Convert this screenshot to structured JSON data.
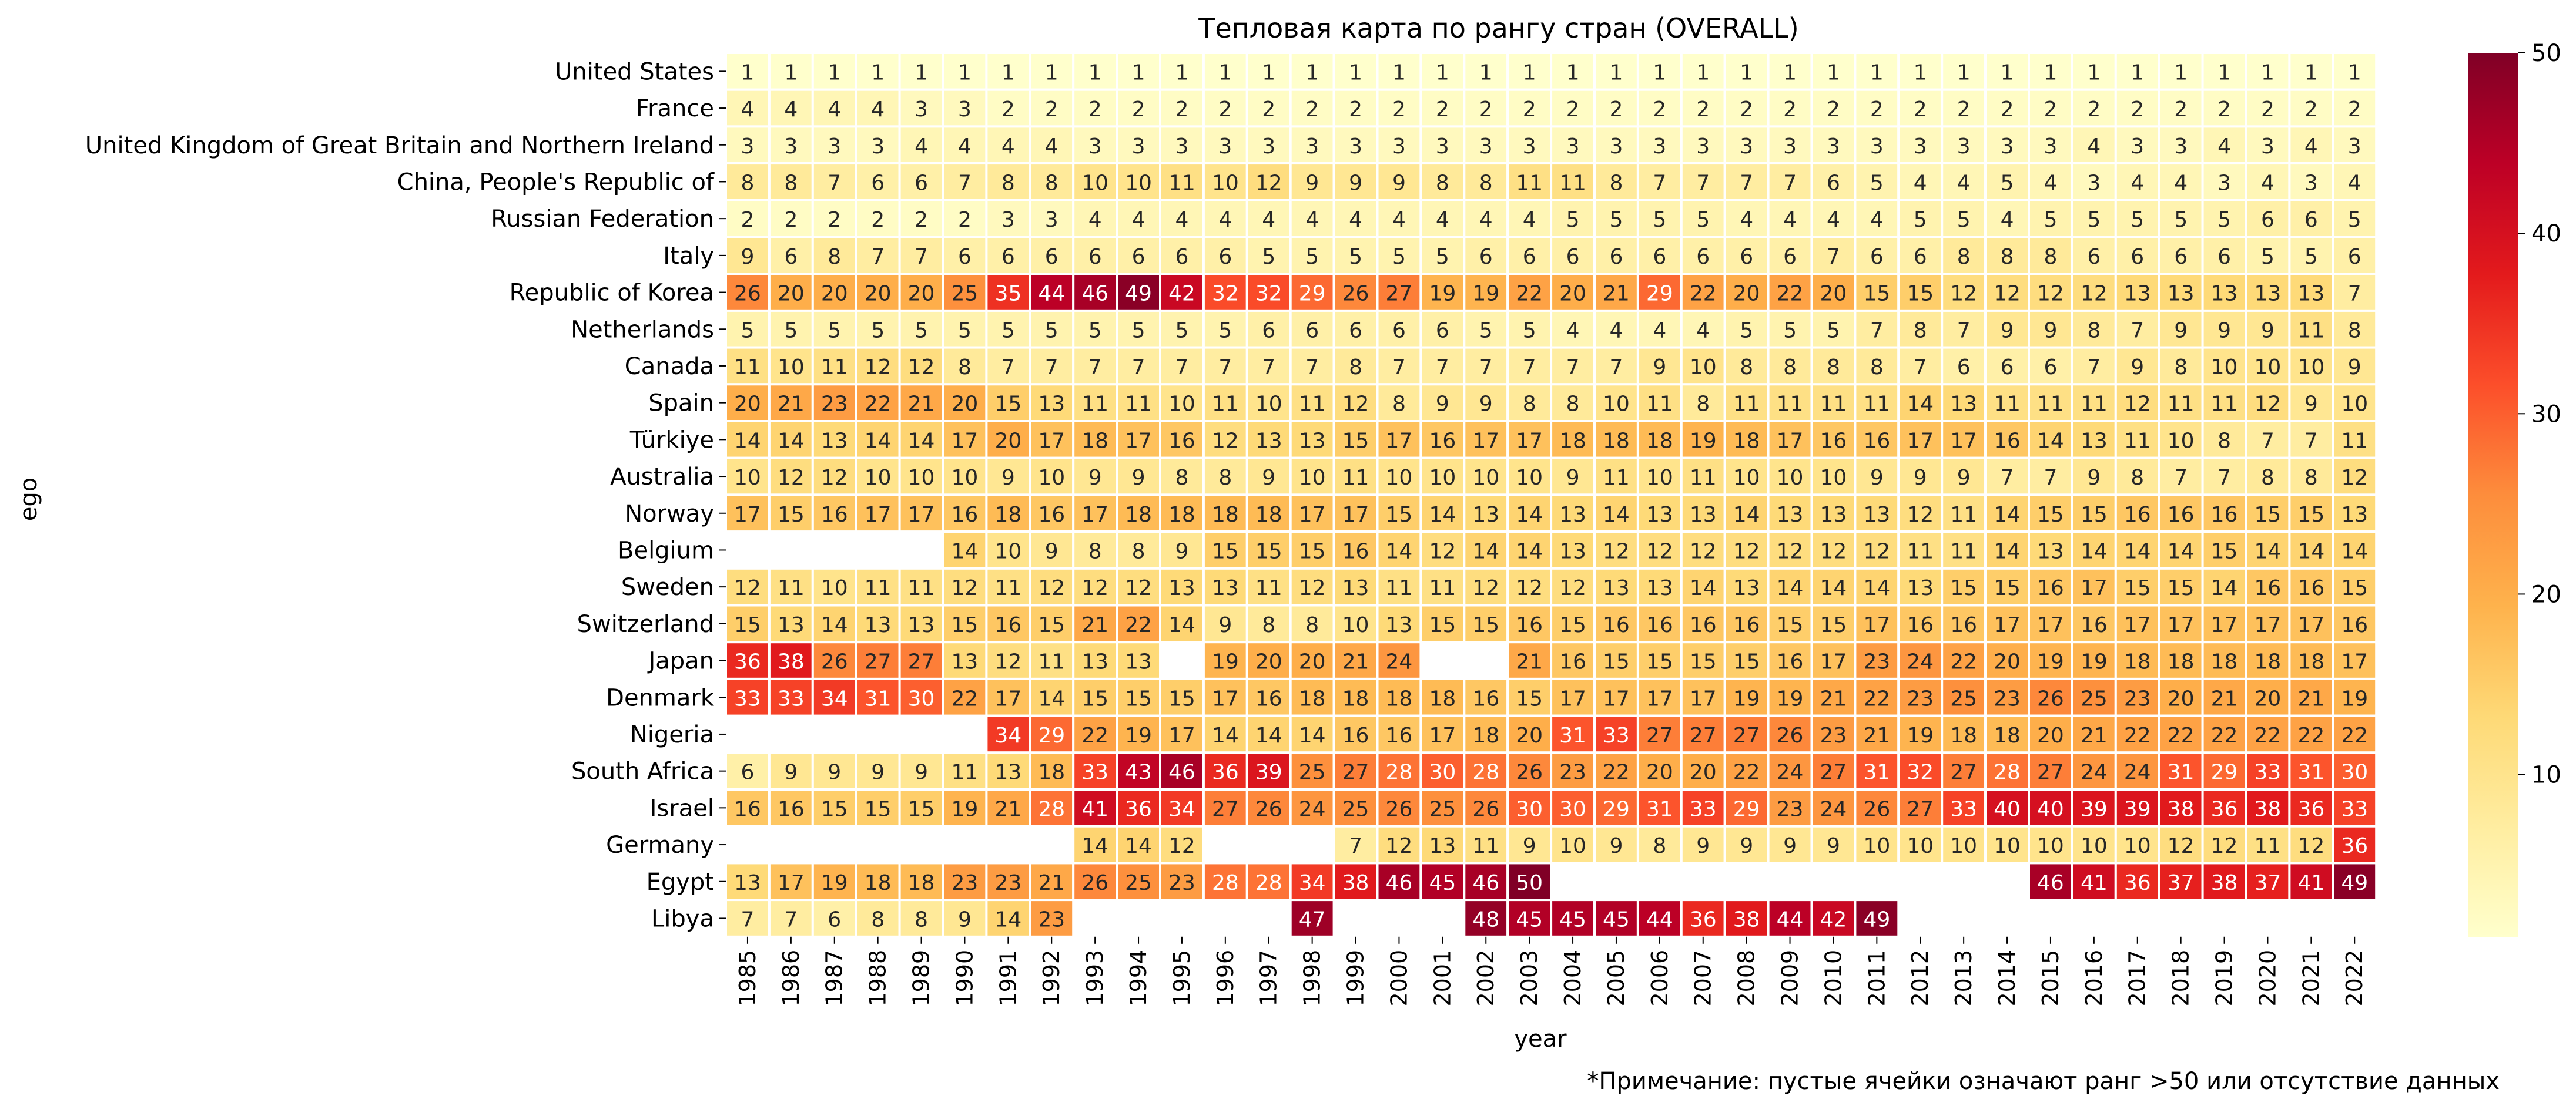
{
  "chart_data": {
    "type": "heatmap",
    "title": "Тепловая карта по рангу стран (OVERALL)",
    "xlabel": "year",
    "ylabel": "ego",
    "note": "*Примечание: пустые ячейки означают ранг >50 или отсутствие данных",
    "colormap": "YlOrRd",
    "color_range": [
      1,
      50
    ],
    "colorbar_ticks": [
      10,
      20,
      30,
      40,
      50
    ],
    "x": [
      "1985",
      "1986",
      "1987",
      "1988",
      "1989",
      "1990",
      "1991",
      "1992",
      "1993",
      "1994",
      "1995",
      "1996",
      "1997",
      "1998",
      "1999",
      "2000",
      "2001",
      "2002",
      "2003",
      "2004",
      "2005",
      "2006",
      "2007",
      "2008",
      "2009",
      "2010",
      "2011",
      "2012",
      "2013",
      "2014",
      "2015",
      "2016",
      "2017",
      "2018",
      "2019",
      "2020",
      "2021",
      "2022"
    ],
    "y": [
      "United States",
      "France",
      "United Kingdom of Great Britain and Northern Ireland",
      "China, People's Republic of",
      "Russian Federation",
      "Italy",
      "Republic of Korea",
      "Netherlands",
      "Canada",
      "Spain",
      "Türkiye",
      "Australia",
      "Norway",
      "Belgium",
      "Sweden",
      "Switzerland",
      "Japan",
      "Denmark",
      "Nigeria",
      "South Africa",
      "Israel",
      "Germany",
      "Egypt",
      "Libya"
    ],
    "values": [
      [
        1,
        1,
        1,
        1,
        1,
        1,
        1,
        1,
        1,
        1,
        1,
        1,
        1,
        1,
        1,
        1,
        1,
        1,
        1,
        1,
        1,
        1,
        1,
        1,
        1,
        1,
        1,
        1,
        1,
        1,
        1,
        1,
        1,
        1,
        1,
        1,
        1,
        1
      ],
      [
        4,
        4,
        4,
        4,
        3,
        3,
        2,
        2,
        2,
        2,
        2,
        2,
        2,
        2,
        2,
        2,
        2,
        2,
        2,
        2,
        2,
        2,
        2,
        2,
        2,
        2,
        2,
        2,
        2,
        2,
        2,
        2,
        2,
        2,
        2,
        2,
        2,
        2
      ],
      [
        3,
        3,
        3,
        3,
        4,
        4,
        4,
        4,
        3,
        3,
        3,
        3,
        3,
        3,
        3,
        3,
        3,
        3,
        3,
        3,
        3,
        3,
        3,
        3,
        3,
        3,
        3,
        3,
        3,
        3,
        3,
        4,
        3,
        3,
        4,
        3,
        4,
        3
      ],
      [
        8,
        8,
        7,
        6,
        6,
        7,
        8,
        8,
        10,
        10,
        11,
        10,
        12,
        9,
        9,
        9,
        8,
        8,
        11,
        11,
        8,
        7,
        7,
        7,
        7,
        6,
        5,
        4,
        4,
        5,
        4,
        3,
        4,
        4,
        3,
        4,
        3,
        4
      ],
      [
        2,
        2,
        2,
        2,
        2,
        2,
        3,
        3,
        4,
        4,
        4,
        4,
        4,
        4,
        4,
        4,
        4,
        4,
        4,
        5,
        5,
        5,
        5,
        4,
        4,
        4,
        4,
        5,
        5,
        4,
        5,
        5,
        5,
        5,
        5,
        6,
        6,
        5
      ],
      [
        9,
        6,
        8,
        7,
        7,
        6,
        6,
        6,
        6,
        6,
        6,
        6,
        5,
        5,
        5,
        5,
        5,
        6,
        6,
        6,
        6,
        6,
        6,
        6,
        6,
        7,
        6,
        6,
        8,
        8,
        8,
        6,
        6,
        6,
        6,
        5,
        5,
        6
      ],
      [
        26,
        20,
        20,
        20,
        20,
        25,
        35,
        44,
        46,
        49,
        42,
        32,
        32,
        29,
        26,
        27,
        19,
        19,
        22,
        20,
        21,
        29,
        22,
        20,
        22,
        20,
        15,
        15,
        12,
        12,
        12,
        12,
        13,
        13,
        13,
        13,
        13,
        7
      ],
      [
        5,
        5,
        5,
        5,
        5,
        5,
        5,
        5,
        5,
        5,
        5,
        5,
        6,
        6,
        6,
        6,
        6,
        5,
        5,
        4,
        4,
        4,
        4,
        5,
        5,
        5,
        7,
        8,
        7,
        9,
        9,
        8,
        7,
        9,
        9,
        9,
        11,
        8
      ],
      [
        11,
        10,
        11,
        12,
        12,
        8,
        7,
        7,
        7,
        7,
        7,
        7,
        7,
        7,
        8,
        7,
        7,
        7,
        7,
        7,
        7,
        9,
        10,
        8,
        8,
        8,
        8,
        7,
        6,
        6,
        6,
        7,
        9,
        8,
        10,
        10,
        10,
        9
      ],
      [
        20,
        21,
        23,
        22,
        21,
        20,
        15,
        13,
        11,
        11,
        10,
        11,
        10,
        11,
        12,
        8,
        9,
        9,
        8,
        8,
        10,
        11,
        8,
        11,
        11,
        11,
        11,
        14,
        13,
        11,
        11,
        11,
        12,
        11,
        11,
        12,
        9,
        10
      ],
      [
        14,
        14,
        13,
        14,
        14,
        17,
        20,
        17,
        18,
        17,
        16,
        12,
        13,
        13,
        15,
        17,
        16,
        17,
        17,
        18,
        18,
        18,
        19,
        18,
        17,
        16,
        16,
        17,
        17,
        16,
        14,
        13,
        11,
        10,
        8,
        7,
        7,
        11
      ],
      [
        10,
        12,
        12,
        10,
        10,
        10,
        9,
        10,
        9,
        9,
        8,
        8,
        9,
        10,
        11,
        10,
        10,
        10,
        10,
        9,
        11,
        10,
        11,
        10,
        10,
        10,
        9,
        9,
        9,
        7,
        7,
        9,
        8,
        7,
        7,
        8,
        8,
        12
      ],
      [
        17,
        15,
        16,
        17,
        17,
        16,
        18,
        16,
        17,
        18,
        18,
        18,
        18,
        17,
        17,
        15,
        14,
        13,
        14,
        13,
        14,
        13,
        13,
        14,
        13,
        13,
        13,
        12,
        11,
        14,
        15,
        15,
        16,
        16,
        16,
        15,
        15,
        13
      ],
      [
        null,
        null,
        null,
        null,
        null,
        14,
        10,
        9,
        8,
        8,
        9,
        15,
        15,
        15,
        16,
        14,
        12,
        14,
        14,
        13,
        12,
        12,
        12,
        12,
        12,
        12,
        12,
        11,
        11,
        14,
        13,
        14,
        14,
        14,
        15,
        14,
        14,
        14
      ],
      [
        12,
        11,
        10,
        11,
        11,
        12,
        11,
        12,
        12,
        12,
        13,
        13,
        11,
        12,
        13,
        11,
        11,
        12,
        12,
        12,
        13,
        13,
        14,
        13,
        14,
        14,
        14,
        13,
        15,
        15,
        16,
        17,
        15,
        15,
        14,
        16,
        16,
        15
      ],
      [
        15,
        13,
        14,
        13,
        13,
        15,
        16,
        15,
        21,
        22,
        14,
        9,
        8,
        8,
        10,
        13,
        15,
        15,
        16,
        15,
        16,
        16,
        16,
        16,
        15,
        15,
        17,
        16,
        16,
        17,
        17,
        16,
        17,
        17,
        17,
        17,
        17,
        16
      ],
      [
        36,
        38,
        26,
        27,
        27,
        13,
        12,
        11,
        13,
        13,
        null,
        19,
        20,
        20,
        21,
        24,
        null,
        null,
        21,
        16,
        15,
        15,
        15,
        15,
        16,
        17,
        23,
        24,
        22,
        20,
        19,
        19,
        18,
        18,
        18,
        18,
        18,
        17
      ],
      [
        33,
        33,
        34,
        31,
        30,
        22,
        17,
        14,
        15,
        15,
        15,
        17,
        16,
        18,
        18,
        18,
        18,
        16,
        15,
        17,
        17,
        17,
        17,
        19,
        19,
        21,
        22,
        23,
        25,
        23,
        26,
        25,
        23,
        20,
        21,
        20,
        21,
        19
      ],
      [
        null,
        null,
        null,
        null,
        null,
        null,
        34,
        29,
        22,
        19,
        17,
        14,
        14,
        14,
        16,
        16,
        17,
        18,
        20,
        31,
        33,
        27,
        27,
        27,
        26,
        23,
        21,
        19,
        18,
        18,
        20,
        21,
        22,
        22,
        22,
        22,
        22,
        22
      ],
      [
        6,
        9,
        9,
        9,
        9,
        11,
        13,
        18,
        33,
        43,
        46,
        36,
        39,
        25,
        27,
        28,
        30,
        28,
        26,
        23,
        22,
        20,
        20,
        22,
        24,
        27,
        31,
        32,
        27,
        28,
        27,
        24,
        24,
        31,
        29,
        33,
        31,
        30
      ],
      [
        16,
        16,
        15,
        15,
        15,
        19,
        21,
        28,
        41,
        36,
        34,
        27,
        26,
        24,
        25,
        26,
        25,
        26,
        30,
        30,
        29,
        31,
        33,
        29,
        23,
        24,
        26,
        27,
        33,
        40,
        40,
        39,
        39,
        38,
        36,
        38,
        36,
        33
      ],
      [
        null,
        null,
        null,
        null,
        null,
        null,
        null,
        null,
        14,
        14,
        12,
        null,
        null,
        null,
        7,
        12,
        13,
        11,
        9,
        10,
        9,
        8,
        9,
        9,
        9,
        9,
        10,
        10,
        10,
        10,
        10,
        10,
        10,
        12,
        12,
        11,
        12,
        36
      ],
      [
        13,
        17,
        19,
        18,
        18,
        23,
        23,
        21,
        26,
        25,
        23,
        28,
        28,
        34,
        38,
        46,
        45,
        46,
        50,
        null,
        null,
        null,
        null,
        null,
        null,
        null,
        null,
        null,
        null,
        null,
        46,
        41,
        36,
        37,
        38,
        37,
        41,
        49
      ],
      [
        7,
        7,
        6,
        8,
        8,
        9,
        14,
        23,
        null,
        null,
        null,
        null,
        null,
        47,
        null,
        null,
        null,
        48,
        45,
        45,
        45,
        44,
        36,
        38,
        44,
        42,
        49,
        null,
        null,
        null,
        null,
        null,
        null,
        null,
        null,
        null,
        null,
        null
      ]
    ]
  }
}
